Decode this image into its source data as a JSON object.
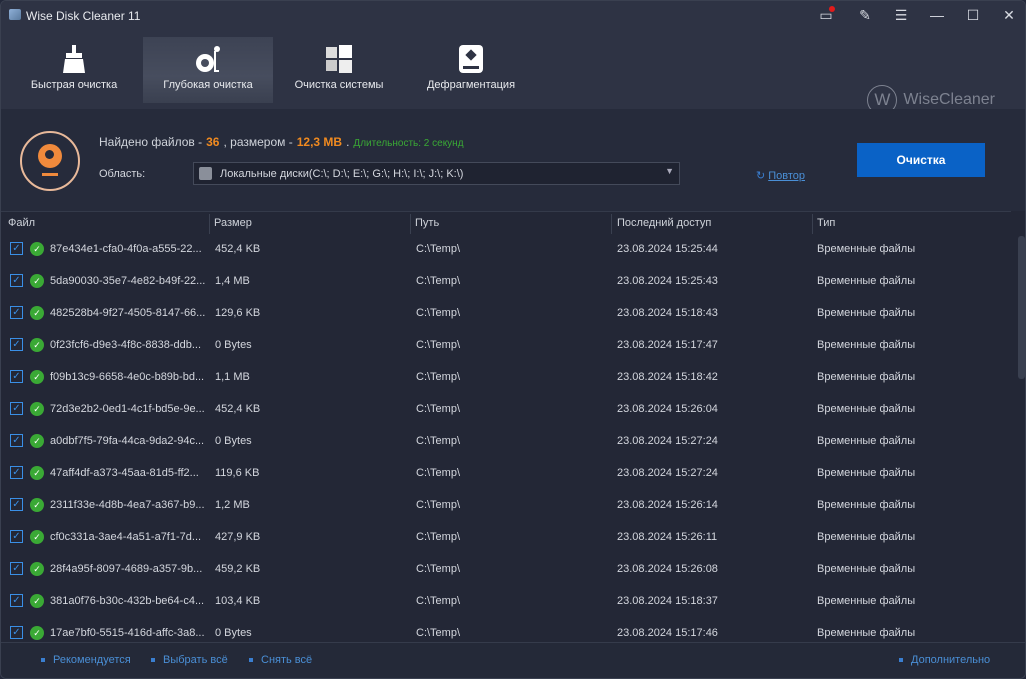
{
  "window": {
    "title": "Wise Disk Cleaner 11"
  },
  "nav": [
    {
      "label": "Быстрая очистка",
      "icon": "broom-icon"
    },
    {
      "label": "Глубокая очистка",
      "icon": "vacuum-icon",
      "active": true
    },
    {
      "label": "Очистка системы",
      "icon": "windows-icon"
    },
    {
      "label": "Дефрагментация",
      "icon": "hard-disk-icon"
    }
  ],
  "logo": {
    "mark": "W",
    "text": "WiseCleaner"
  },
  "scan": {
    "found_label": "Найдено файлов -",
    "count": "36",
    "size_label": ", размером -",
    "size": "12,3 MB",
    "period": ".",
    "duration": "Длительность: 2 секунд",
    "area_label": "Область:",
    "area_value": "Локальные диски(C:\\; D:\\; E:\\; G:\\; H:\\; I:\\; J:\\; K:\\)",
    "retry": "Повтор",
    "clean": "Очистка"
  },
  "columns": [
    "Файл",
    "Размер",
    "Путь",
    "Последний доступ",
    "Тип"
  ],
  "rows": [
    [
      "87e434e1-cfa0-4f0a-a555-22...",
      "452,4 KB",
      "C:\\Temp\\",
      "23.08.2024 15:25:44",
      "Временные файлы"
    ],
    [
      "5da90030-35e7-4e82-b49f-22...",
      "1,4 MB",
      "C:\\Temp\\",
      "23.08.2024 15:25:43",
      "Временные файлы"
    ],
    [
      "482528b4-9f27-4505-8147-66...",
      "129,6 KB",
      "C:\\Temp\\",
      "23.08.2024 15:18:43",
      "Временные файлы"
    ],
    [
      "0f23fcf6-d9e3-4f8c-8838-ddb...",
      "0 Bytes",
      "C:\\Temp\\",
      "23.08.2024 15:17:47",
      "Временные файлы"
    ],
    [
      "f09b13c9-6658-4e0c-b89b-bd...",
      "1,1 MB",
      "C:\\Temp\\",
      "23.08.2024 15:18:42",
      "Временные файлы"
    ],
    [
      "72d3e2b2-0ed1-4c1f-bd5e-9e...",
      "452,4 KB",
      "C:\\Temp\\",
      "23.08.2024 15:26:04",
      "Временные файлы"
    ],
    [
      "a0dbf7f5-79fa-44ca-9da2-94c...",
      "0 Bytes",
      "C:\\Temp\\",
      "23.08.2024 15:27:24",
      "Временные файлы"
    ],
    [
      "47aff4df-a373-45aa-81d5-ff2...",
      "119,6 KB",
      "C:\\Temp\\",
      "23.08.2024 15:27:24",
      "Временные файлы"
    ],
    [
      "2311f33e-4d8b-4ea7-a367-b9...",
      "1,2 MB",
      "C:\\Temp\\",
      "23.08.2024 15:26:14",
      "Временные файлы"
    ],
    [
      "cf0c331a-3ae4-4a51-a7f1-7d...",
      "427,9 KB",
      "C:\\Temp\\",
      "23.08.2024 15:26:11",
      "Временные файлы"
    ],
    [
      "28f4a95f-8097-4689-a357-9b...",
      "459,2 KB",
      "C:\\Temp\\",
      "23.08.2024 15:26:08",
      "Временные файлы"
    ],
    [
      "381a0f76-b30c-432b-be64-c4...",
      "103,4 KB",
      "C:\\Temp\\",
      "23.08.2024 15:18:37",
      "Временные файлы"
    ],
    [
      "17ae7bf0-5515-416d-affc-3a8...",
      "0 Bytes",
      "C:\\Temp\\",
      "23.08.2024 15:17:46",
      "Временные файлы"
    ]
  ],
  "footer": {
    "recommended": "Рекомендуется",
    "select_all": "Выбрать всё",
    "deselect_all": "Снять всё",
    "advanced": "Дополнительно"
  },
  "colors": {
    "accent": "#0a62c6",
    "highlight": "#f08a20",
    "success": "#3aa935",
    "link": "#4a8fd6"
  }
}
